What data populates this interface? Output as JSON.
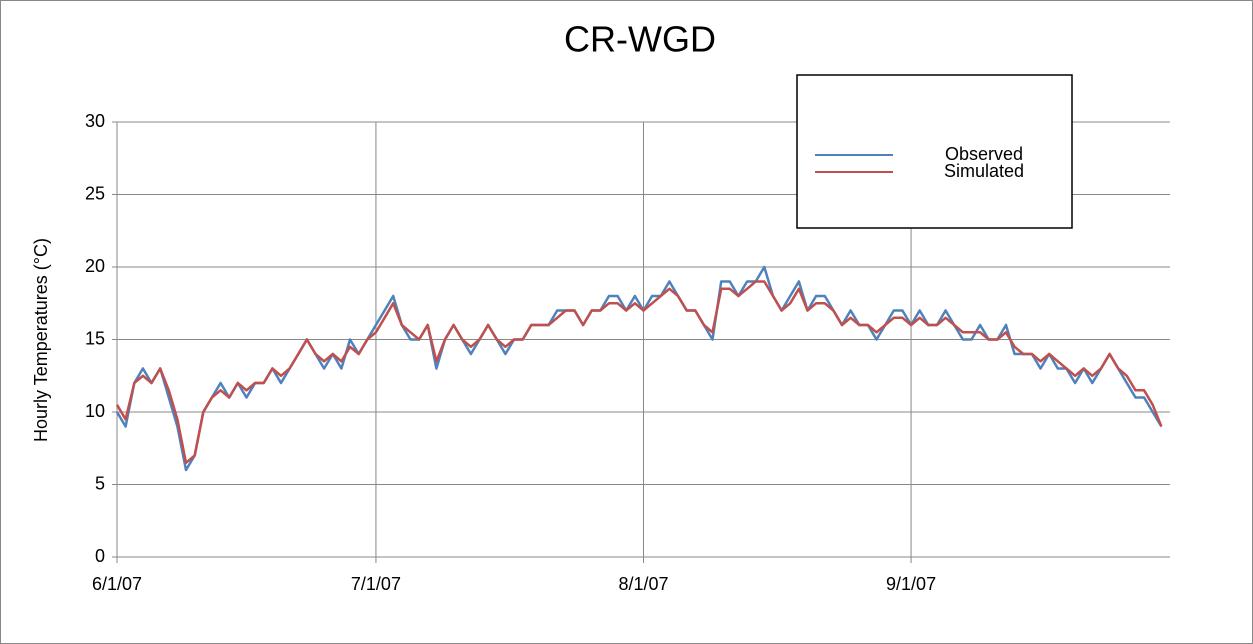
{
  "chart_data": {
    "type": "line",
    "title": "CR-WGD",
    "y_label": "Hourly Temperatures (°C)",
    "x": [
      "6/1/07",
      "6/2/07",
      "6/3/07",
      "6/4/07",
      "6/5/07",
      "6/6/07",
      "6/7/07",
      "6/8/07",
      "6/9/07",
      "6/10/07",
      "6/11/07",
      "6/12/07",
      "6/13/07",
      "6/14/07",
      "6/15/07",
      "6/16/07",
      "6/17/07",
      "6/18/07",
      "6/19/07",
      "6/20/07",
      "6/21/07",
      "6/22/07",
      "6/23/07",
      "6/24/07",
      "6/25/07",
      "6/26/07",
      "6/27/07",
      "6/28/07",
      "6/29/07",
      "6/30/07",
      "7/1/07",
      "7/2/07",
      "7/3/07",
      "7/4/07",
      "7/5/07",
      "7/6/07",
      "7/7/07",
      "7/8/07",
      "7/9/07",
      "7/10/07",
      "7/11/07",
      "7/12/07",
      "7/13/07",
      "7/14/07",
      "7/15/07",
      "7/16/07",
      "7/17/07",
      "7/18/07",
      "7/19/07",
      "7/20/07",
      "7/21/07",
      "7/22/07",
      "7/23/07",
      "7/24/07",
      "7/25/07",
      "7/26/07",
      "7/27/07",
      "7/28/07",
      "7/29/07",
      "7/30/07",
      "7/31/07",
      "8/1/07",
      "8/2/07",
      "8/3/07",
      "8/4/07",
      "8/5/07",
      "8/6/07",
      "8/7/07",
      "8/8/07",
      "8/9/07",
      "8/10/07",
      "8/11/07",
      "8/12/07",
      "8/13/07",
      "8/14/07",
      "8/15/07",
      "8/16/07",
      "8/17/07",
      "8/18/07",
      "8/19/07",
      "8/20/07",
      "8/21/07",
      "8/22/07",
      "8/23/07",
      "8/24/07",
      "8/25/07",
      "8/26/07",
      "8/27/07",
      "8/28/07",
      "8/29/07",
      "8/30/07",
      "8/31/07",
      "9/1/07",
      "9/2/07",
      "9/3/07",
      "9/4/07",
      "9/5/07",
      "9/6/07",
      "9/7/07",
      "9/8/07",
      "9/9/07",
      "9/10/07",
      "9/11/07",
      "9/12/07",
      "9/13/07",
      "9/14/07",
      "9/15/07",
      "9/16/07",
      "9/17/07",
      "9/18/07",
      "9/19/07",
      "9/20/07",
      "9/21/07",
      "9/22/07",
      "9/23/07",
      "9/24/07",
      "9/25/07",
      "9/26/07",
      "9/27/07",
      "9/28/07",
      "9/29/07",
      "9/30/07"
    ],
    "series": [
      {
        "name": "Observed",
        "color": "#4f81bd",
        "values": [
          10,
          9,
          12,
          13,
          12,
          13,
          11,
          9,
          6,
          7,
          10,
          11,
          12,
          11,
          12,
          11,
          12,
          12,
          13,
          12,
          13,
          14,
          15,
          14,
          13,
          14,
          13,
          15,
          14,
          15,
          16,
          17,
          18,
          16,
          15,
          15,
          16,
          13,
          15,
          16,
          15,
          14,
          15,
          16,
          15,
          14,
          15,
          15,
          16,
          16,
          16,
          17,
          17,
          17,
          16,
          17,
          17,
          18,
          18,
          17,
          18,
          17,
          18,
          18,
          19,
          18,
          17,
          17,
          16,
          15,
          19,
          19,
          18,
          19,
          19,
          20,
          18,
          17,
          18,
          19,
          17,
          18,
          18,
          17,
          16,
          17,
          16,
          16,
          15,
          16,
          17,
          17,
          16,
          17,
          16,
          16,
          17,
          16,
          15,
          15,
          16,
          15,
          15,
          16,
          14,
          14,
          14,
          13,
          14,
          13,
          13,
          12,
          13,
          12,
          13,
          14,
          13,
          12,
          11,
          11,
          10,
          9
        ]
      },
      {
        "name": "Simulated",
        "color": "#c0504d",
        "values": [
          10.5,
          9.5,
          12,
          12.5,
          12,
          13,
          11.5,
          9.5,
          6.5,
          7,
          10,
          11,
          11.5,
          11,
          12,
          11.5,
          12,
          12,
          13,
          12.5,
          13,
          14,
          15,
          14,
          13.5,
          14,
          13.5,
          14.5,
          14,
          15,
          15.5,
          16.5,
          17.5,
          16,
          15.5,
          15,
          16,
          13.5,
          15,
          16,
          15,
          14.5,
          15,
          16,
          15,
          14.5,
          15,
          15,
          16,
          16,
          16,
          16.5,
          17,
          17,
          16,
          17,
          17,
          17.5,
          17.5,
          17,
          17.5,
          17,
          17.5,
          18,
          18.5,
          18,
          17,
          17,
          16,
          15.5,
          18.5,
          18.5,
          18,
          18.5,
          19,
          19,
          18,
          17,
          17.5,
          18.5,
          17,
          17.5,
          17.5,
          17,
          16,
          16.5,
          16,
          16,
          15.5,
          16,
          16.5,
          16.5,
          16,
          16.5,
          16,
          16,
          16.5,
          16,
          15.5,
          15.5,
          15.5,
          15,
          15,
          15.5,
          14.5,
          14,
          14,
          13.5,
          14,
          13.5,
          13,
          12.5,
          13,
          12.5,
          13,
          14,
          13,
          12.5,
          11.5,
          11.5,
          10.5,
          9
        ]
      }
    ],
    "xlim": [
      "6/1/07",
      "10/1/07"
    ],
    "xticks": [
      "6/1/07",
      "7/1/07",
      "8/1/07",
      "9/1/07"
    ],
    "ylim": [
      0,
      30
    ],
    "yticks": [
      0,
      5,
      10,
      15,
      20,
      25,
      30
    ],
    "grid": true,
    "legend": "upper right"
  }
}
